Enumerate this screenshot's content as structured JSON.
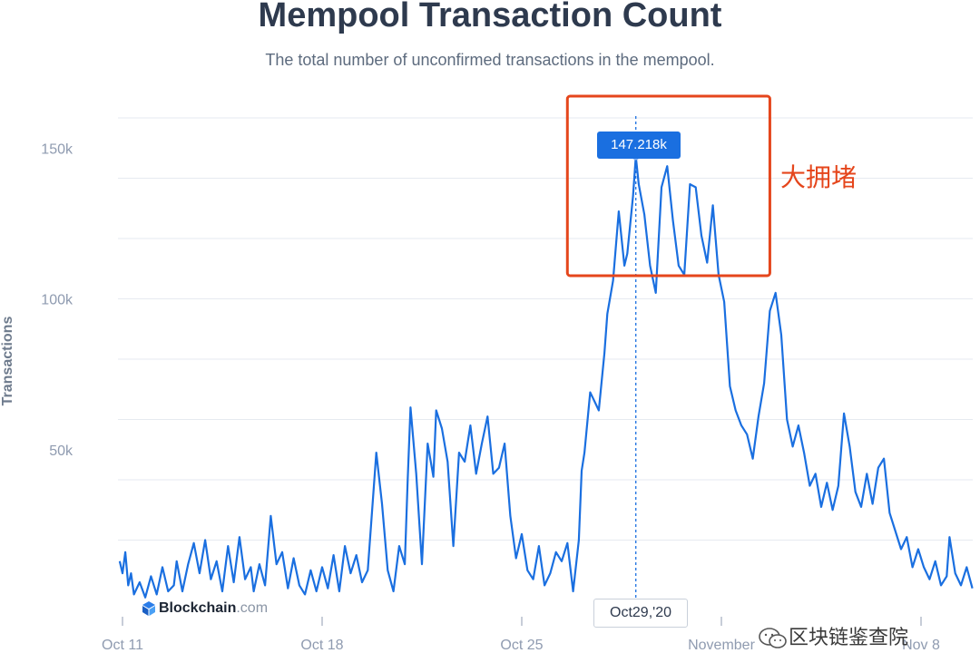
{
  "header": {
    "title": "Mempool Transaction Count",
    "subtitle": "The total number of unconfirmed transactions in the mempool."
  },
  "annotation": {
    "text": "大拥堵",
    "color": "#e5461c"
  },
  "tooltip": {
    "value": "147.218k",
    "date": "Oct29,'20"
  },
  "branding": {
    "name": "Blockchain",
    "tld": ".com"
  },
  "watermark": {
    "text": "区块链鉴查院"
  },
  "colors": {
    "line": "#1a6fe0",
    "grid": "#e6eaf0",
    "axis_text": "#8f9bb0",
    "highlight_box": "#e5461c"
  },
  "chart_data": {
    "type": "line",
    "title": "Mempool Transaction Count",
    "subtitle": "The total number of unconfirmed transactions in the mempool.",
    "xlabel": "",
    "ylabel": "Transactions",
    "ylim": [
      0,
      160000
    ],
    "yticks": [
      {
        "value": 50000,
        "label": "50k"
      },
      {
        "value": 100000,
        "label": "100k"
      },
      {
        "value": 150000,
        "label": "150k"
      }
    ],
    "xticks": [
      {
        "day": 0,
        "label": "Oct 11"
      },
      {
        "day": 7,
        "label": "Oct 18"
      },
      {
        "day": 14,
        "label": "Oct 25"
      },
      {
        "day": 21,
        "label": "November"
      },
      {
        "day": 28,
        "label": "Nov 8"
      }
    ],
    "xlim": [
      -0.1,
      29.8
    ],
    "grid": true,
    "highlight": {
      "x_start": 15.6,
      "x_end": 22.7,
      "y_low": 110000,
      "y_high": 170000
    },
    "hover": {
      "x": 18.0,
      "y": 147218
    },
    "series": [
      {
        "points": [
          [
            -0.1,
            13000
          ],
          [
            0.0,
            9000
          ],
          [
            0.1,
            16000
          ],
          [
            0.2,
            5000
          ],
          [
            0.3,
            9000
          ],
          [
            0.4,
            2000
          ],
          [
            0.6,
            6000
          ],
          [
            0.8,
            1000
          ],
          [
            1.0,
            8000
          ],
          [
            1.2,
            2000
          ],
          [
            1.4,
            11000
          ],
          [
            1.6,
            3000
          ],
          [
            1.8,
            5000
          ],
          [
            1.9,
            13000
          ],
          [
            2.1,
            3000
          ],
          [
            2.3,
            12000
          ],
          [
            2.5,
            19000
          ],
          [
            2.7,
            9000
          ],
          [
            2.9,
            20000
          ],
          [
            3.1,
            7000
          ],
          [
            3.3,
            13000
          ],
          [
            3.5,
            3000
          ],
          [
            3.7,
            18000
          ],
          [
            3.9,
            6000
          ],
          [
            4.1,
            21000
          ],
          [
            4.3,
            7000
          ],
          [
            4.5,
            11000
          ],
          [
            4.6,
            3000
          ],
          [
            4.8,
            12000
          ],
          [
            5.0,
            5000
          ],
          [
            5.2,
            28000
          ],
          [
            5.4,
            12000
          ],
          [
            5.6,
            16000
          ],
          [
            5.8,
            4000
          ],
          [
            6.0,
            14000
          ],
          [
            6.2,
            5000
          ],
          [
            6.4,
            2000
          ],
          [
            6.6,
            10000
          ],
          [
            6.8,
            3000
          ],
          [
            7.0,
            11000
          ],
          [
            7.2,
            4000
          ],
          [
            7.4,
            15000
          ],
          [
            7.6,
            3000
          ],
          [
            7.8,
            18000
          ],
          [
            8.0,
            9000
          ],
          [
            8.2,
            15000
          ],
          [
            8.4,
            6000
          ],
          [
            8.6,
            10000
          ],
          [
            8.9,
            49000
          ],
          [
            9.1,
            32000
          ],
          [
            9.3,
            10000
          ],
          [
            9.5,
            3000
          ],
          [
            9.7,
            18000
          ],
          [
            9.9,
            12000
          ],
          [
            10.0,
            40000
          ],
          [
            10.1,
            64000
          ],
          [
            10.3,
            42000
          ],
          [
            10.5,
            12000
          ],
          [
            10.7,
            52000
          ],
          [
            10.9,
            41000
          ],
          [
            11.0,
            63000
          ],
          [
            11.2,
            57000
          ],
          [
            11.4,
            46000
          ],
          [
            11.6,
            18000
          ],
          [
            11.8,
            49000
          ],
          [
            12.0,
            46000
          ],
          [
            12.2,
            58000
          ],
          [
            12.4,
            42000
          ],
          [
            12.6,
            52000
          ],
          [
            12.8,
            61000
          ],
          [
            13.0,
            42000
          ],
          [
            13.2,
            44000
          ],
          [
            13.4,
            52000
          ],
          [
            13.6,
            28000
          ],
          [
            13.8,
            14000
          ],
          [
            14.0,
            22000
          ],
          [
            14.2,
            10000
          ],
          [
            14.4,
            7000
          ],
          [
            14.6,
            18000
          ],
          [
            14.8,
            5000
          ],
          [
            15.0,
            9000
          ],
          [
            15.2,
            16000
          ],
          [
            15.4,
            13000
          ],
          [
            15.6,
            19000
          ],
          [
            15.8,
            3000
          ],
          [
            16.0,
            20000
          ],
          [
            16.1,
            43000
          ],
          [
            16.2,
            49000
          ],
          [
            16.4,
            69000
          ],
          [
            16.5,
            67000
          ],
          [
            16.7,
            63000
          ],
          [
            16.9,
            82000
          ],
          [
            17.0,
            95000
          ],
          [
            17.2,
            106000
          ],
          [
            17.4,
            129000
          ],
          [
            17.6,
            111000
          ],
          [
            17.7,
            115000
          ],
          [
            17.9,
            134000
          ],
          [
            18.0,
            147218
          ],
          [
            18.1,
            138000
          ],
          [
            18.3,
            128000
          ],
          [
            18.5,
            111000
          ],
          [
            18.7,
            102000
          ],
          [
            18.9,
            137000
          ],
          [
            19.1,
            144000
          ],
          [
            19.3,
            126000
          ],
          [
            19.5,
            111000
          ],
          [
            19.7,
            108000
          ],
          [
            19.9,
            138000
          ],
          [
            20.1,
            137000
          ],
          [
            20.3,
            121000
          ],
          [
            20.5,
            112000
          ],
          [
            20.7,
            131000
          ],
          [
            20.9,
            108000
          ],
          [
            21.1,
            99000
          ],
          [
            21.3,
            71000
          ],
          [
            21.5,
            63000
          ],
          [
            21.7,
            58000
          ],
          [
            21.9,
            55000
          ],
          [
            22.1,
            47000
          ],
          [
            22.3,
            61000
          ],
          [
            22.5,
            72000
          ],
          [
            22.7,
            96000
          ],
          [
            22.9,
            102000
          ],
          [
            23.1,
            88000
          ],
          [
            23.3,
            60000
          ],
          [
            23.5,
            51000
          ],
          [
            23.7,
            58000
          ],
          [
            23.9,
            49000
          ],
          [
            24.1,
            38000
          ],
          [
            24.3,
            42000
          ],
          [
            24.5,
            31000
          ],
          [
            24.7,
            39000
          ],
          [
            24.9,
            30000
          ],
          [
            25.1,
            38000
          ],
          [
            25.3,
            62000
          ],
          [
            25.5,
            51000
          ],
          [
            25.7,
            36000
          ],
          [
            25.9,
            31000
          ],
          [
            26.1,
            42000
          ],
          [
            26.3,
            32000
          ],
          [
            26.5,
            44000
          ],
          [
            26.7,
            47000
          ],
          [
            26.9,
            29000
          ],
          [
            27.1,
            23000
          ],
          [
            27.3,
            17000
          ],
          [
            27.5,
            21000
          ],
          [
            27.7,
            11000
          ],
          [
            27.9,
            17000
          ],
          [
            28.1,
            11000
          ],
          [
            28.3,
            7000
          ],
          [
            28.5,
            13000
          ],
          [
            28.7,
            5000
          ],
          [
            28.9,
            8000
          ],
          [
            29.0,
            21000
          ],
          [
            29.2,
            9000
          ],
          [
            29.4,
            5000
          ],
          [
            29.6,
            11000
          ],
          [
            29.8,
            4000
          ]
        ]
      }
    ]
  }
}
